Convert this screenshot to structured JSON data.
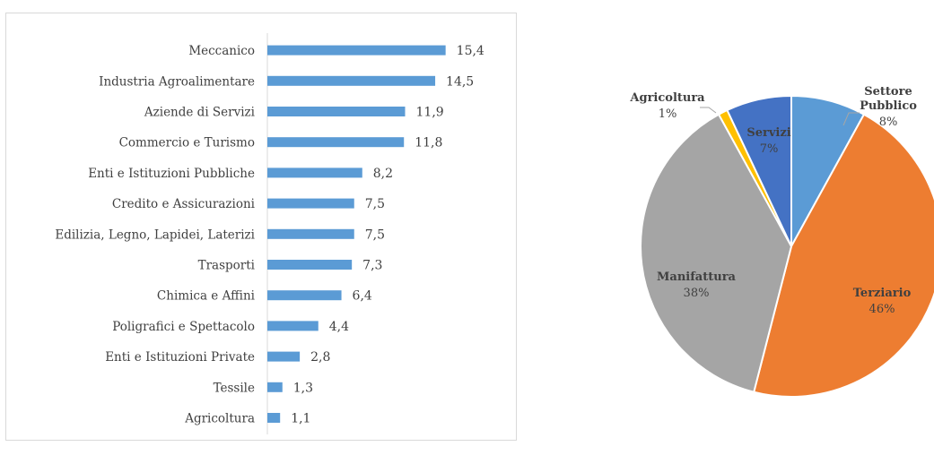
{
  "chart_data": [
    {
      "type": "bar",
      "orientation": "horizontal",
      "categories": [
        "Meccanico",
        "Industria Agroalimentare",
        "Aziende di Servizi",
        "Commercio e Turismo",
        "Enti e Istituzioni Pubbliche",
        "Credito e Assicurazioni",
        "Edilizia, Legno, Lapidei, Laterizi",
        "Trasporti",
        "Chimica e Affini",
        "Poligrafici e Spettacolo",
        "Enti e Istituzioni Private",
        "Tessile",
        "Agricoltura"
      ],
      "values": [
        15.4,
        14.5,
        11.9,
        11.8,
        8.2,
        7.5,
        7.5,
        7.3,
        6.4,
        4.4,
        2.8,
        1.3,
        1.1
      ],
      "value_labels": [
        "15,4",
        "14,5",
        "11,9",
        "11,8",
        "8,2",
        "7,5",
        "7,5",
        "7,3",
        "6,4",
        "4,4",
        "2,8",
        "1,3",
        "1,1"
      ],
      "xlim": [
        0,
        18
      ],
      "bar_color": "#5b9bd5",
      "grid": false,
      "title": "",
      "xlabel": "",
      "ylabel": ""
    },
    {
      "type": "pie",
      "slices": [
        {
          "name": "Settore Pubblico",
          "value": 8,
          "label": "8%",
          "color": "#5b9bd5"
        },
        {
          "name": "Terziario",
          "value": 46,
          "label": "46%",
          "color": "#ed7d31"
        },
        {
          "name": "Manifattura",
          "value": 38,
          "label": "38%",
          "color": "#a5a5a5"
        },
        {
          "name": "Agricoltura",
          "value": 1,
          "label": "1%",
          "color": "#ffc000"
        },
        {
          "name": "Servizi",
          "value": 7,
          "label": "7%",
          "color": "#4472c4"
        }
      ],
      "start_angle_deg": 0,
      "direction": "clockwise"
    }
  ]
}
